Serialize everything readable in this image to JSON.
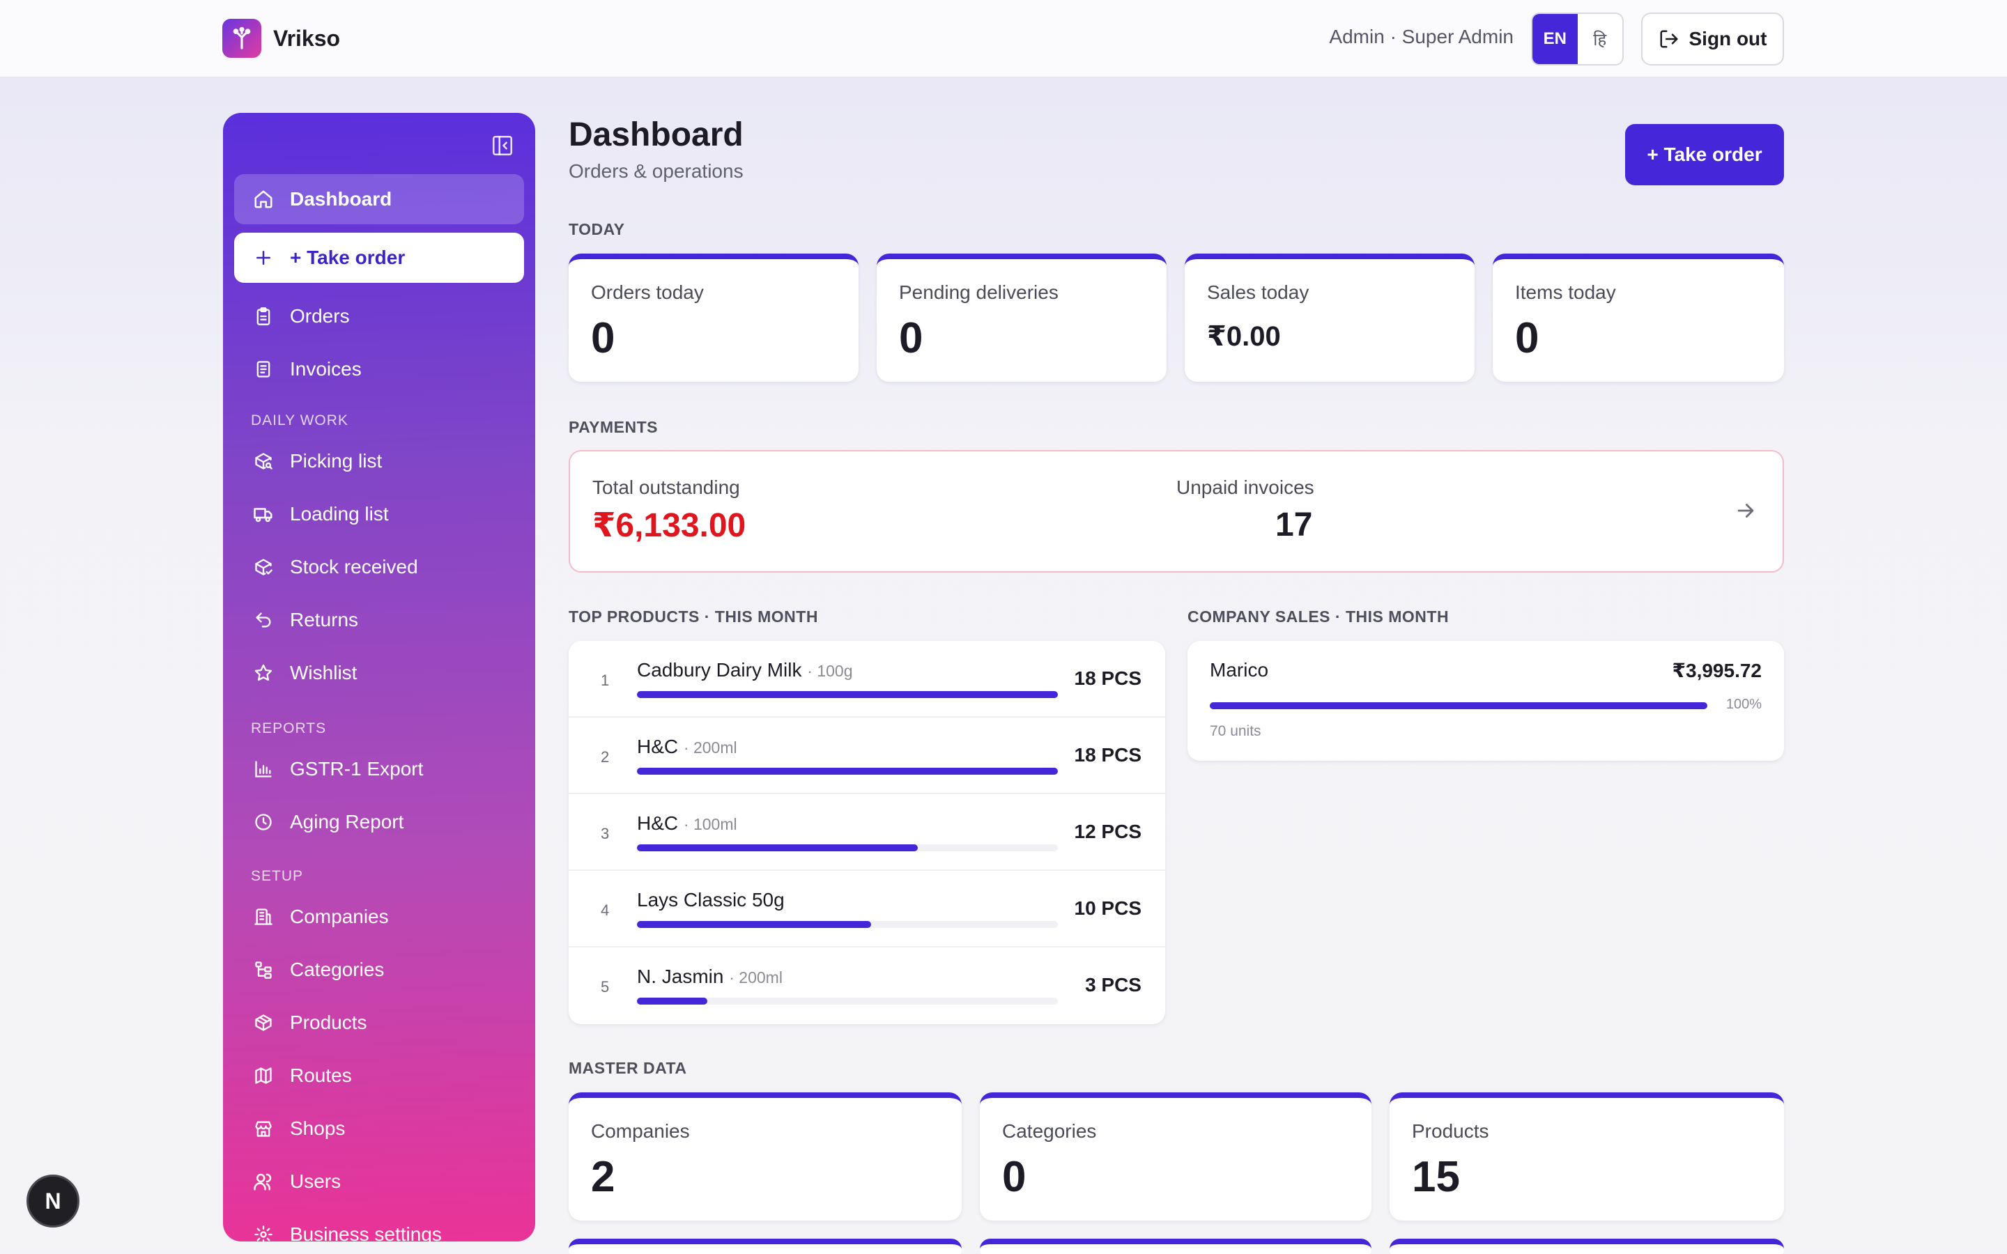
{
  "app": {
    "name": "Vrikso",
    "user": "Admin · Super Admin"
  },
  "lang": {
    "en": "EN",
    "hi": "हि"
  },
  "header": {
    "signout": "Sign out"
  },
  "sidebar": {
    "items": [
      {
        "label": "Dashboard",
        "icon": "home-icon"
      },
      {
        "label": "+ Take order",
        "icon": "plus-icon"
      },
      {
        "label": "Orders",
        "icon": "clipboard-icon"
      },
      {
        "label": "Invoices",
        "icon": "document-icon"
      }
    ],
    "daily_title": "DAILY WORK",
    "daily": [
      {
        "label": "Picking list",
        "icon": "package-search-icon"
      },
      {
        "label": "Loading list",
        "icon": "truck-icon"
      },
      {
        "label": "Stock received",
        "icon": "package-check-icon"
      },
      {
        "label": "Returns",
        "icon": "undo-icon"
      },
      {
        "label": "Wishlist",
        "icon": "star-icon"
      }
    ],
    "reports_title": "REPORTS",
    "reports": [
      {
        "label": "GSTR-1 Export",
        "icon": "bar-chart-icon"
      },
      {
        "label": "Aging Report",
        "icon": "clock-icon"
      }
    ],
    "setup_title": "SETUP",
    "setup": [
      {
        "label": "Companies",
        "icon": "building-icon"
      },
      {
        "label": "Categories",
        "icon": "tree-icon"
      },
      {
        "label": "Products",
        "icon": "box-icon"
      },
      {
        "label": "Routes",
        "icon": "map-icon"
      },
      {
        "label": "Shops",
        "icon": "store-icon"
      },
      {
        "label": "Users",
        "icon": "users-icon"
      },
      {
        "label": "Business settings",
        "icon": "gear-icon"
      }
    ]
  },
  "main": {
    "title": "Dashboard",
    "subtitle": "Orders & operations",
    "take_order": "+ Take order",
    "today_label": "TODAY",
    "today": [
      {
        "label": "Orders today",
        "value": "0"
      },
      {
        "label": "Pending deliveries",
        "value": "0"
      },
      {
        "label": "Sales today",
        "value": "₹0.00"
      },
      {
        "label": "Items today",
        "value": "0"
      }
    ],
    "payments_label": "PAYMENTS",
    "payments": {
      "outstanding_label": "Total outstanding",
      "outstanding_value": "₹6,133.00",
      "unpaid_label": "Unpaid invoices",
      "unpaid_value": "17"
    },
    "top_products_label": "TOP PRODUCTS · THIS MONTH",
    "top_products": [
      {
        "rank": "1",
        "name": "Cadbury Dairy Milk",
        "meta": "· 100g",
        "qty": "18 PCS",
        "share": 1.0
      },
      {
        "rank": "2",
        "name": "H&C",
        "meta": "· 200ml",
        "qty": "18 PCS",
        "share": 1.0
      },
      {
        "rank": "3",
        "name": "H&C",
        "meta": "· 100ml",
        "qty": "12 PCS",
        "share": 0.667
      },
      {
        "rank": "4",
        "name": "Lays Classic 50g",
        "meta": "",
        "qty": "10 PCS",
        "share": 0.556
      },
      {
        "rank": "5",
        "name": "N. Jasmin",
        "meta": "· 200ml",
        "qty": "3 PCS",
        "share": 0.167
      }
    ],
    "company_sales_label": "COMPANY SALES · THIS MONTH",
    "company_sales": [
      {
        "name": "Marico",
        "amount": "₹3,995.72",
        "percent": "100%",
        "units": "70 units",
        "share": 1.0
      }
    ],
    "master_label": "MASTER DATA",
    "master": [
      {
        "label": "Companies",
        "value": "2"
      },
      {
        "label": "Categories",
        "value": "0"
      },
      {
        "label": "Products",
        "value": "15"
      }
    ]
  },
  "dev": {
    "badge": "N"
  },
  "colors": {
    "accent": "#4526d8",
    "danger": "#e0151d"
  }
}
